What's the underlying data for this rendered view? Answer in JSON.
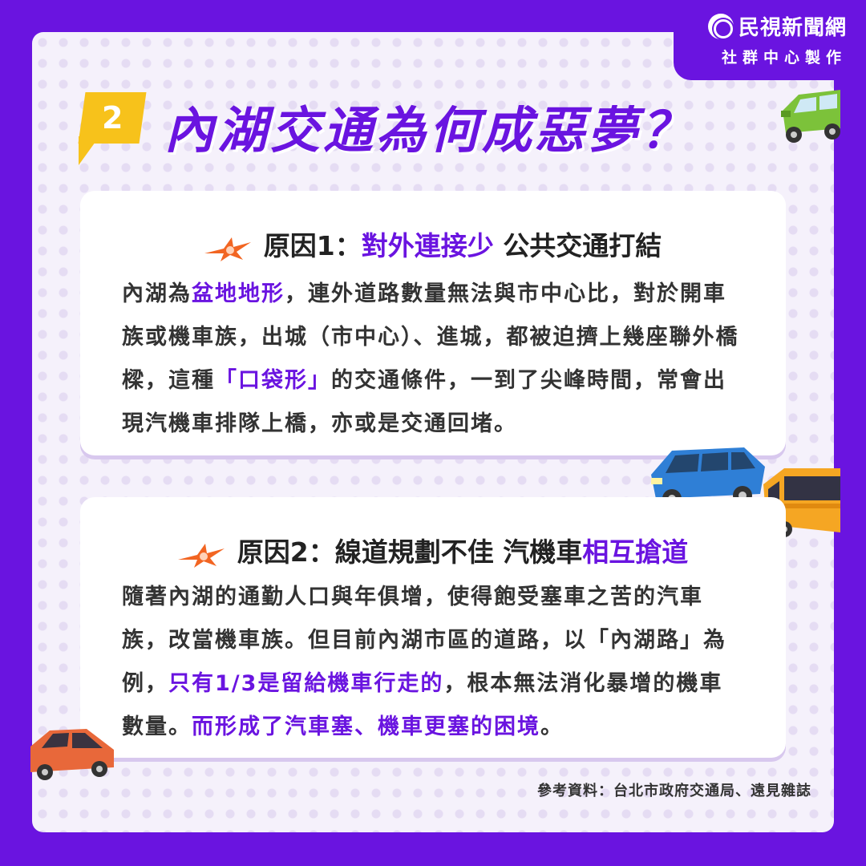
{
  "brand": {
    "name": "民視新聞網",
    "sub": "社群中心製作",
    "logo_icon": "eye-logo-icon"
  },
  "header": {
    "badge_number": "2",
    "title": "內湖交通為何成惡夢？"
  },
  "reasons": [
    {
      "title_prefix": "原因1：",
      "title_highlight": "對外連接少",
      "title_suffix": " 公共交通打結",
      "body_parts": [
        {
          "text": "內湖為",
          "hl": false
        },
        {
          "text": "盆地地形",
          "hl": true
        },
        {
          "text": "，連外道路數量無法與市中心比，對於開車族或機車族，出城（市中心）、進城，都被迫擠上幾座聯外橋樑，這種",
          "hl": false
        },
        {
          "text": "「口袋形」",
          "hl": true
        },
        {
          "text": "的交通條件，一到了尖峰時間，常會出現汽機車排隊上橋，亦或是交通回堵。",
          "hl": false
        }
      ]
    },
    {
      "title_prefix": "原因2：",
      "title_plain": "線道規劃不佳 汽機車",
      "title_highlight": "相互搶道",
      "body_parts": [
        {
          "text": "隨著內湖的通勤人口與年俱增，使得飽受塞車之苦的汽車族，改當機車族。但目前內湖市區的道路，以「內湖路」為例，",
          "hl": false
        },
        {
          "text": "只有1/3是留給機車行走的",
          "hl": true
        },
        {
          "text": "，根本無法消化暴增的機車數量。",
          "hl": false
        },
        {
          "text": "而形成了汽車塞、機車更塞的困境",
          "hl": true
        },
        {
          "text": "。",
          "hl": false
        }
      ]
    }
  ],
  "source": "參考資料：台北市政府交通局、遠見雜誌",
  "colors": {
    "accent": "#6a14e0",
    "badge": "#f7c21b",
    "burst": "#f26522"
  },
  "decorations": [
    "green-car-icon",
    "blue-van-icon",
    "yellow-bus-icon",
    "orange-car-icon",
    "burst-icon"
  ]
}
